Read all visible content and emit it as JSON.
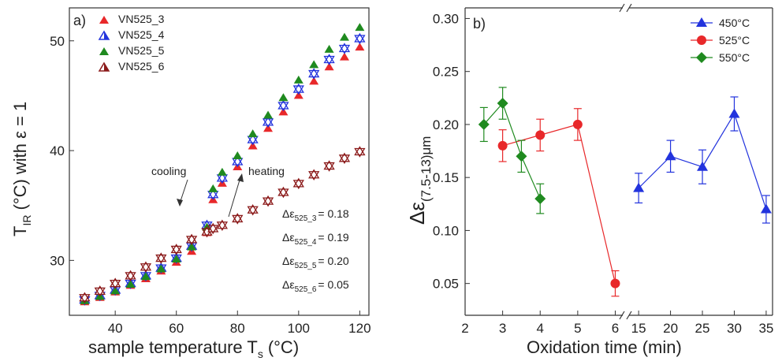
{
  "chart_data": [
    {
      "type": "scatter",
      "panel_label": "a)",
      "xlabel": "sample temperature T",
      "xlabel_sub": "s",
      "xlabel_unit": "(°C)",
      "ylabel_main": "T",
      "ylabel_sub": "IR",
      "ylabel_rest": "(°C) with ε = 1",
      "xlim": [
        25,
        123
      ],
      "ylim": [
        25,
        53
      ],
      "xticks": [
        40,
        60,
        80,
        100,
        120
      ],
      "yticks": [
        30,
        40,
        50
      ],
      "grid": false,
      "legend_position": "top-left",
      "legend": [
        {
          "label": "VN525_3",
          "color": "#e8282a",
          "marker": "triangle-up"
        },
        {
          "label": "VN525_4",
          "color": "#2233dd",
          "marker": "triangle-up-half"
        },
        {
          "label": "VN525_5",
          "color": "#1f8a1f",
          "marker": "triangle-up"
        },
        {
          "label": "VN525_6",
          "color": "#8b1a1a",
          "marker": "triangle-up-half"
        }
      ],
      "series": [
        {
          "name": "VN525_3",
          "color": "#e8282a",
          "x": [
            30,
            35,
            40,
            45,
            50,
            55,
            60,
            65,
            70,
            72,
            75,
            80,
            85,
            90,
            95,
            100,
            105,
            110,
            115,
            120
          ],
          "y": [
            26.2,
            26.6,
            27.1,
            27.7,
            28.3,
            29.0,
            29.8,
            30.8,
            32.5,
            35.5,
            37.0,
            38.5,
            40.4,
            42.0,
            43.5,
            45.0,
            46.3,
            47.6,
            48.5,
            49.4
          ]
        },
        {
          "name": "VN525_4",
          "color": "#2233dd",
          "x": [
            30,
            35,
            40,
            45,
            50,
            55,
            60,
            65,
            70,
            72,
            75,
            80,
            85,
            90,
            95,
            100,
            105,
            110,
            115,
            120
          ],
          "y": [
            26.4,
            26.8,
            27.3,
            27.9,
            28.6,
            29.3,
            30.2,
            31.3,
            33.2,
            36.0,
            37.5,
            39.0,
            41.0,
            42.6,
            44.1,
            45.6,
            47.0,
            48.3,
            49.3,
            50.2
          ]
        },
        {
          "name": "VN525_5",
          "color": "#1f8a1f",
          "x": [
            30,
            35,
            40,
            45,
            50,
            55,
            60,
            65,
            70,
            72,
            75,
            80,
            85,
            90,
            95,
            100,
            105,
            110,
            115,
            120
          ],
          "y": [
            26.3,
            26.7,
            27.2,
            27.8,
            28.5,
            29.2,
            30.1,
            31.2,
            33.0,
            36.5,
            38.0,
            39.5,
            41.5,
            43.2,
            44.8,
            46.4,
            47.8,
            49.2,
            50.3,
            51.2
          ]
        },
        {
          "name": "VN525_6",
          "color": "#8b1a1a",
          "x": [
            30,
            35,
            40,
            45,
            50,
            55,
            60,
            65,
            70,
            72,
            75,
            80,
            85,
            90,
            95,
            100,
            105,
            110,
            115,
            120
          ],
          "y": [
            26.6,
            27.2,
            27.9,
            28.6,
            29.4,
            30.2,
            31.0,
            31.9,
            32.6,
            32.9,
            33.2,
            33.8,
            34.6,
            35.4,
            36.2,
            37.0,
            37.8,
            38.6,
            39.3,
            39.9
          ]
        }
      ],
      "annotations": {
        "cooling": "cooling",
        "heating": "heating",
        "d1_main": "Δε",
        "d1_sub": "525_3",
        "d1_val": "= 0.18",
        "d2_main": "Δε",
        "d2_sub": "525_4",
        "d2_val": "= 0.19",
        "d3_main": "Δε",
        "d3_sub": "525_5",
        "d3_val": "= 0.20",
        "d4_main": "Δε",
        "d4_sub": "525_6",
        "d4_val": "= 0.05"
      }
    },
    {
      "type": "line",
      "panel_label": "b)",
      "xlabel": "Oxidation time (min)",
      "ylabel_main": "Δε",
      "ylabel_sub": "(7.5-13)",
      "ylabel_unit": "μm",
      "ylim": [
        0.02,
        0.31
      ],
      "yticks": [
        0.05,
        0.1,
        0.15,
        0.2,
        0.25,
        0.3
      ],
      "ytick_labels": [
        "0.05",
        "0.10",
        "0.15",
        "0.20",
        "0.25",
        "0.30"
      ],
      "x_segments": [
        {
          "range": [
            2,
            6.2
          ],
          "ticks": [
            2,
            3,
            4,
            5,
            6
          ]
        },
        {
          "range": [
            13.5,
            36
          ],
          "ticks": [
            15,
            20,
            25,
            30,
            35
          ]
        }
      ],
      "axis_break": true,
      "grid": false,
      "legend_position": "top-right",
      "series": [
        {
          "name": "450°C",
          "color": "#2233dd",
          "marker": "triangle-up",
          "segment": 1,
          "x": [
            15,
            20,
            25,
            30,
            35
          ],
          "y": [
            0.14,
            0.17,
            0.16,
            0.21,
            0.12
          ],
          "err": [
            0.014,
            0.015,
            0.016,
            0.016,
            0.013
          ]
        },
        {
          "name": "525°C",
          "color": "#e8282a",
          "marker": "circle",
          "segment": 0,
          "x": [
            3,
            4,
            5,
            6
          ],
          "y": [
            0.18,
            0.19,
            0.2,
            0.05
          ],
          "err": [
            0.015,
            0.015,
            0.015,
            0.012
          ]
        },
        {
          "name": "550°C",
          "color": "#1f8a1f",
          "marker": "diamond",
          "segment": 0,
          "x": [
            2.5,
            3,
            3.5,
            4
          ],
          "y": [
            0.2,
            0.22,
            0.17,
            0.13
          ],
          "err": [
            0.016,
            0.015,
            0.015,
            0.014
          ]
        }
      ]
    }
  ]
}
